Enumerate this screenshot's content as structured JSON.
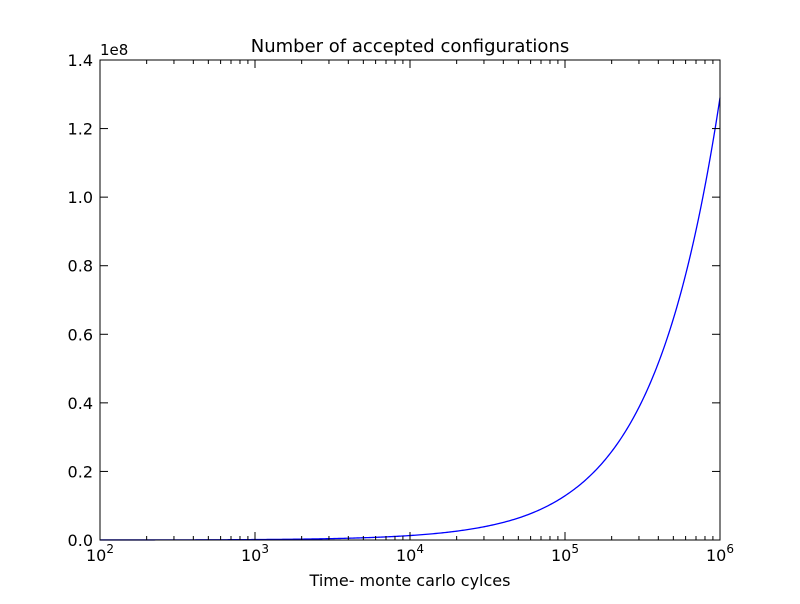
{
  "chart_data": {
    "type": "line",
    "title": "Number of accepted configurations",
    "xlabel": "Time- monte carlo cylces",
    "ylabel": "",
    "x_scale": "log",
    "xlim": [
      100,
      1000000
    ],
    "ylim": [
      0,
      1.4
    ],
    "y_multiplier_label": "1e8",
    "x_major_ticks": [
      {
        "value": 100,
        "base": "10",
        "exp": "2"
      },
      {
        "value": 1000,
        "base": "10",
        "exp": "3"
      },
      {
        "value": 10000,
        "base": "10",
        "exp": "4"
      },
      {
        "value": 100000,
        "base": "10",
        "exp": "5"
      },
      {
        "value": 1000000,
        "base": "10",
        "exp": "6"
      }
    ],
    "y_ticks": [
      {
        "value": 0.0,
        "label": "0.0"
      },
      {
        "value": 0.2,
        "label": "0.2"
      },
      {
        "value": 0.4,
        "label": "0.4"
      },
      {
        "value": 0.6,
        "label": "0.6"
      },
      {
        "value": 0.8,
        "label": "0.8"
      },
      {
        "value": 1.0,
        "label": "1.0"
      },
      {
        "value": 1.2,
        "label": "1.2"
      },
      {
        "value": 1.4,
        "label": "1.4"
      }
    ],
    "grid": false,
    "series": [
      {
        "color": "#0000ff",
        "x": [
          100,
          1000,
          10000,
          50000,
          100000,
          200000,
          300000,
          500000,
          700000,
          1000000
        ],
        "y": [
          0.0001,
          0.0013,
          0.013,
          0.064,
          0.129,
          0.258,
          0.387,
          0.645,
          0.903,
          1.29
        ]
      }
    ]
  }
}
